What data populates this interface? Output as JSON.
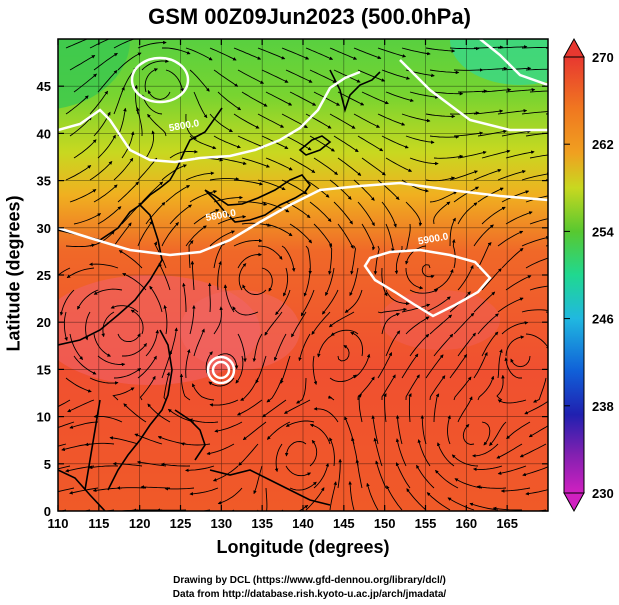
{
  "title": "GSM 00Z09Jun2023 (500.0hPa)",
  "xlabel": "Longitude (degrees)",
  "ylabel": "Latitude  (degrees)",
  "credits": [
    "Drawing by DCL (https://www.gfd-dennou.org/library/dcl/)",
    "Data from http://database.rish.kyoto-u.ac.jp/arch/jmadata/"
  ],
  "map": {
    "lon_range": [
      110,
      170
    ],
    "lat_range": [
      0,
      50
    ],
    "x_ticks": [
      110,
      115,
      120,
      125,
      130,
      135,
      140,
      145,
      150,
      155,
      160,
      165
    ],
    "y_ticks": [
      0,
      5,
      10,
      15,
      20,
      25,
      30,
      35,
      40,
      45
    ],
    "contour_labels": [
      {
        "text": "5800.0",
        "lon": 125.5,
        "lat": 40.5
      },
      {
        "text": "5800.0",
        "lon": 130.0,
        "lat": 31.0
      },
      {
        "text": "5900.0",
        "lon": 156.0,
        "lat": 28.5
      }
    ]
  },
  "colorbar": {
    "labels": [
      "270",
      "262",
      "254",
      "246",
      "238",
      "230"
    ],
    "colors": [
      "#e83830",
      "#f07820",
      "#f0a020",
      "#c8d820",
      "#58c830",
      "#20d890",
      "#20b8e0",
      "#1060d8",
      "#2020b0",
      "#8020b0",
      "#d020c0"
    ]
  }
}
